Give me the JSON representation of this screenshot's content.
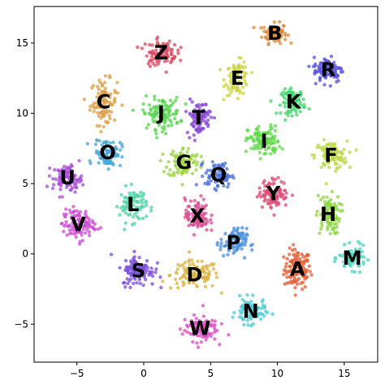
{
  "chart_data": {
    "type": "scatter",
    "title": "",
    "xlabel": "",
    "ylabel": "",
    "xlim": [
      -8.2,
      17.5
    ],
    "ylim": [
      -7.7,
      17.6
    ],
    "xticks": [
      -5,
      0,
      5,
      10,
      15
    ],
    "yticks": [
      -5,
      0,
      5,
      10,
      15
    ],
    "grid": false,
    "legend": "none",
    "clusters": [
      {
        "label": "A",
        "x": 11.5,
        "y": -1.1,
        "sx": 0.5,
        "sy": 0.7,
        "color": "#e0623a",
        "n": 120
      },
      {
        "label": "B",
        "x": 9.8,
        "y": 15.7,
        "sx": 0.45,
        "sy": 0.35,
        "color": "#e08a3e",
        "n": 90
      },
      {
        "label": "C",
        "x": -3.0,
        "y": 10.8,
        "sx": 0.5,
        "sy": 0.8,
        "color": "#dba04a",
        "n": 100
      },
      {
        "label": "D",
        "x": 3.8,
        "y": -1.5,
        "sx": 0.9,
        "sy": 0.5,
        "color": "#dcb44b",
        "n": 120
      },
      {
        "label": "E",
        "x": 7.0,
        "y": 12.5,
        "sx": 0.45,
        "sy": 0.6,
        "color": "#cfd545",
        "n": 90
      },
      {
        "label": "F",
        "x": 14.0,
        "y": 7.0,
        "sx": 0.6,
        "sy": 0.5,
        "color": "#bcd94a",
        "n": 100
      },
      {
        "label": "G",
        "x": 3.0,
        "y": 6.5,
        "sx": 0.6,
        "sy": 0.55,
        "color": "#9fd445",
        "n": 100
      },
      {
        "label": "H",
        "x": 13.8,
        "y": 2.8,
        "sx": 0.45,
        "sy": 0.7,
        "color": "#8ed641",
        "n": 90
      },
      {
        "label": "I",
        "x": 9.0,
        "y": 8.0,
        "sx": 0.6,
        "sy": 0.55,
        "color": "#62d94b",
        "n": 110
      },
      {
        "label": "J",
        "x": 1.3,
        "y": 10.0,
        "sx": 0.7,
        "sy": 0.55,
        "color": "#5bd453",
        "n": 110
      },
      {
        "label": "K",
        "x": 11.2,
        "y": 10.8,
        "sx": 0.45,
        "sy": 0.45,
        "color": "#46d66d",
        "n": 90
      },
      {
        "label": "L",
        "x": -0.8,
        "y": 3.5,
        "sx": 0.5,
        "sy": 0.6,
        "color": "#4fd3a4",
        "n": 90
      },
      {
        "label": "M",
        "x": 15.6,
        "y": -0.3,
        "sx": 0.5,
        "sy": 0.4,
        "color": "#4bd6c3",
        "n": 90
      },
      {
        "label": "N",
        "x": 8.0,
        "y": -4.1,
        "sx": 0.55,
        "sy": 0.45,
        "color": "#4ccad6",
        "n": 90
      },
      {
        "label": "O",
        "x": -2.7,
        "y": 7.2,
        "sx": 0.5,
        "sy": 0.5,
        "color": "#4aa5da",
        "n": 90
      },
      {
        "label": "P",
        "x": 6.7,
        "y": 0.8,
        "sx": 0.5,
        "sy": 0.5,
        "color": "#4b8fdc",
        "n": 90
      },
      {
        "label": "Q",
        "x": 5.6,
        "y": 5.6,
        "sx": 0.5,
        "sy": 0.45,
        "color": "#4a72d6",
        "n": 90
      },
      {
        "label": "R",
        "x": 13.8,
        "y": 13.1,
        "sx": 0.55,
        "sy": 0.45,
        "color": "#5a55d8",
        "n": 110
      },
      {
        "label": "S",
        "x": -0.4,
        "y": -1.2,
        "sx": 0.6,
        "sy": 0.55,
        "color": "#7a4fd8",
        "n": 110
      },
      {
        "label": "T",
        "x": 4.1,
        "y": 9.7,
        "sx": 0.45,
        "sy": 0.6,
        "color": "#8a4ad6",
        "n": 90
      },
      {
        "label": "U",
        "x": -5.7,
        "y": 5.4,
        "sx": 0.55,
        "sy": 0.45,
        "color": "#a84fd6",
        "n": 100
      },
      {
        "label": "V",
        "x": -4.9,
        "y": 2.1,
        "sx": 0.6,
        "sy": 0.55,
        "color": "#cc4fd0",
        "n": 110
      },
      {
        "label": "W",
        "x": 4.2,
        "y": -5.3,
        "sx": 0.65,
        "sy": 0.45,
        "color": "#d94fc4",
        "n": 110
      },
      {
        "label": "X",
        "x": 4.0,
        "y": 2.7,
        "sx": 0.45,
        "sy": 0.6,
        "color": "#d94f95",
        "n": 90
      },
      {
        "label": "Y",
        "x": 9.7,
        "y": 4.3,
        "sx": 0.55,
        "sy": 0.5,
        "color": "#db4f7a",
        "n": 100
      },
      {
        "label": "Z",
        "x": 1.3,
        "y": 14.3,
        "sx": 0.6,
        "sy": 0.45,
        "color": "#d94e62",
        "n": 100
      }
    ]
  }
}
